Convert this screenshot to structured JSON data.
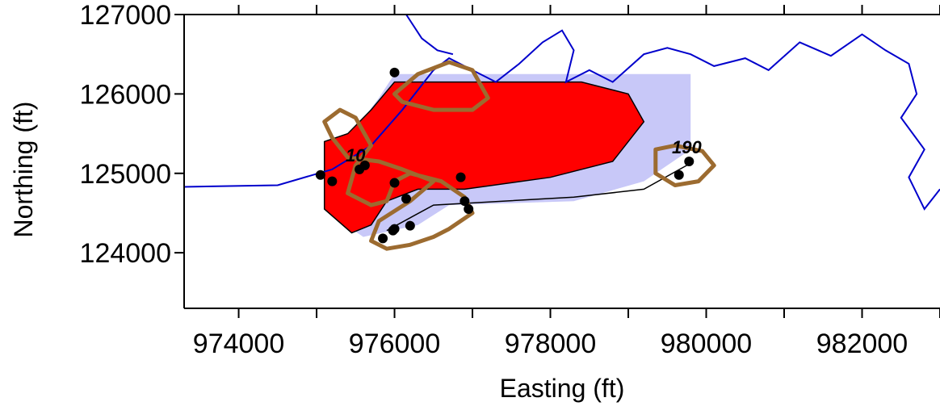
{
  "chart_data": {
    "type": "map",
    "xlabel": "Easting (ft)",
    "ylabel": "Northing (ft)",
    "xlim": [
      973300,
      983000
    ],
    "ylim": [
      123300,
      127000
    ],
    "xticks": [
      974000,
      976000,
      978000,
      980000,
      982000
    ],
    "yticks": [
      124000,
      125000,
      126000,
      127000
    ],
    "xtick_labels": [
      "974000",
      "976000",
      "978000",
      "980000",
      "982000"
    ],
    "ytick_labels": [
      "124000",
      "125000",
      "126000",
      "127000"
    ],
    "colors": {
      "shoreline": "#0000cc",
      "plume_fill": "#ff0000",
      "model_domain_fill": "#c8c8f8",
      "contour_line": "#9c6b30",
      "wells": "#000000"
    },
    "contour_labels": [
      {
        "text": "10",
        "x": 975500,
        "y": 125150
      },
      {
        "text": "190",
        "x": 979750,
        "y": 125250
      }
    ],
    "shaded_area": [
      [
        975150,
        124500
      ],
      [
        975300,
        125300
      ],
      [
        975800,
        125950
      ],
      [
        976000,
        126250
      ],
      [
        979800,
        126250
      ],
      [
        979800,
        125300
      ],
      [
        979200,
        124900
      ],
      [
        978300,
        124650
      ],
      [
        976700,
        124600
      ],
      [
        976300,
        124350
      ],
      [
        975600,
        124200
      ],
      [
        975150,
        124500
      ]
    ],
    "plume": [
      [
        975100,
        124550
      ],
      [
        975100,
        125400
      ],
      [
        975400,
        125500
      ],
      [
        975700,
        125800
      ],
      [
        976000,
        126150
      ],
      [
        977000,
        126150
      ],
      [
        978400,
        126150
      ],
      [
        979000,
        126000
      ],
      [
        979200,
        125650
      ],
      [
        978800,
        125150
      ],
      [
        978000,
        124950
      ],
      [
        976900,
        124800
      ],
      [
        976300,
        124800
      ],
      [
        975900,
        124650
      ],
      [
        975700,
        124350
      ],
      [
        975450,
        124250
      ],
      [
        975100,
        124550
      ]
    ],
    "domain_lower_boundary": [
      [
        975900,
        124280
      ],
      [
        976500,
        124600
      ],
      [
        978300,
        124700
      ],
      [
        979200,
        124800
      ],
      [
        979750,
        125100
      ]
    ],
    "shoreline": [
      [
        973300,
        124830
      ],
      [
        974500,
        124850
      ],
      [
        975200,
        125050
      ],
      [
        975700,
        125350
      ],
      [
        976100,
        125800
      ],
      [
        976300,
        126050
      ],
      [
        976500,
        126300
      ],
      [
        976700,
        126450
      ],
      [
        977000,
        126300
      ],
      [
        977300,
        126150
      ],
      [
        977600,
        126380
      ],
      [
        977900,
        126650
      ],
      [
        978150,
        126800
      ],
      [
        978300,
        126550
      ],
      [
        978200,
        126150
      ],
      [
        978500,
        126300
      ],
      [
        978800,
        126150
      ],
      [
        979200,
        126500
      ],
      [
        979500,
        126580
      ],
      [
        979800,
        126500
      ],
      [
        980100,
        126350
      ],
      [
        980500,
        126450
      ],
      [
        980800,
        126300
      ],
      [
        981200,
        126650
      ],
      [
        981600,
        126480
      ],
      [
        982000,
        126750
      ],
      [
        982300,
        126550
      ],
      [
        982600,
        126380
      ],
      [
        982700,
        126000
      ],
      [
        982500,
        125700
      ],
      [
        982800,
        125300
      ],
      [
        982600,
        124950
      ],
      [
        982800,
        124550
      ],
      [
        983000,
        124800
      ]
    ],
    "shoreline_upper_reach": [
      [
        976150,
        127000
      ],
      [
        976350,
        126700
      ],
      [
        976550,
        126550
      ],
      [
        976750,
        126500
      ]
    ],
    "contours": [
      [
        [
          976000,
          126000
        ],
        [
          976300,
          126250
        ],
        [
          976700,
          126400
        ],
        [
          977000,
          126300
        ],
        [
          977200,
          125950
        ],
        [
          977000,
          125800
        ],
        [
          976500,
          125800
        ],
        [
          976100,
          125900
        ],
        [
          976000,
          126000
        ]
      ],
      [
        [
          975100,
          125650
        ],
        [
          975300,
          125800
        ],
        [
          975500,
          125700
        ],
        [
          975700,
          125350
        ],
        [
          975500,
          125100
        ],
        [
          975400,
          124750
        ],
        [
          975700,
          124600
        ],
        [
          975900,
          124650
        ],
        [
          976000,
          124900
        ],
        [
          976200,
          125000
        ],
        [
          976600,
          124900
        ],
        [
          976900,
          124700
        ],
        [
          977000,
          124500
        ],
        [
          976700,
          124300
        ],
        [
          976500,
          124200
        ],
        [
          976200,
          124100
        ],
        [
          975900,
          124050
        ],
        [
          975700,
          124150
        ],
        [
          975800,
          124400
        ],
        [
          976200,
          124650
        ],
        [
          976500,
          124900
        ],
        [
          976100,
          125050
        ],
        [
          975800,
          125150
        ],
        [
          975400,
          125200
        ],
        [
          975200,
          125450
        ],
        [
          975100,
          125650
        ]
      ],
      [
        [
          979350,
          125300
        ],
        [
          979600,
          125350
        ],
        [
          979950,
          125280
        ],
        [
          980100,
          125100
        ],
        [
          979900,
          124900
        ],
        [
          979600,
          124850
        ],
        [
          979350,
          125000
        ],
        [
          979350,
          125300
        ]
      ]
    ],
    "wells": [
      [
        976000,
        126270
      ],
      [
        975050,
        124980
      ],
      [
        975200,
        124900
      ],
      [
        975550,
        125050
      ],
      [
        975620,
        125100
      ],
      [
        976000,
        124880
      ],
      [
        976150,
        124680
      ],
      [
        976850,
        124950
      ],
      [
        976900,
        124650
      ],
      [
        976950,
        124550
      ],
      [
        975980,
        124280
      ],
      [
        976200,
        124340
      ],
      [
        976000,
        124300
      ],
      [
        975850,
        124180
      ],
      [
        979650,
        124980
      ],
      [
        979780,
        125150
      ]
    ]
  }
}
